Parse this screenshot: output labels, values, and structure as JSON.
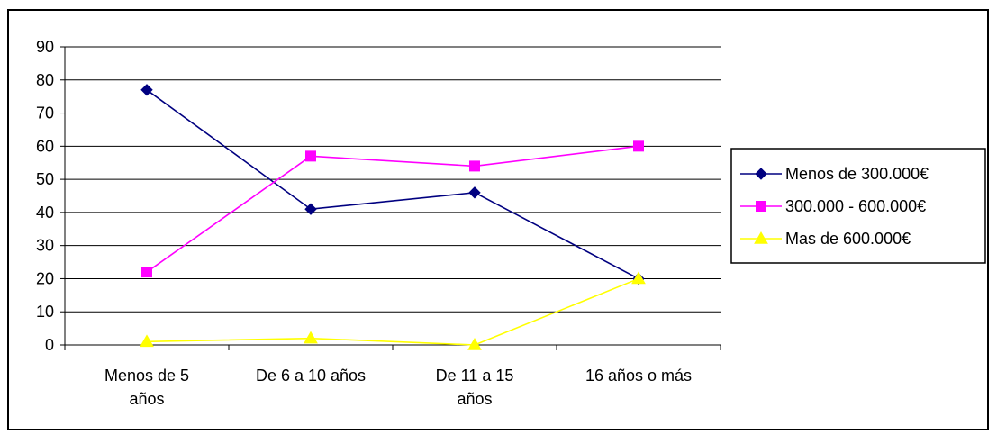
{
  "chart_data": {
    "type": "line",
    "title": "",
    "xlabel": "",
    "ylabel": "",
    "categories": [
      [
        "Menos de 5",
        "años"
      ],
      [
        "De 6 a 10 años"
      ],
      [
        "De 11 a 15",
        "años"
      ],
      [
        "16 años o más"
      ]
    ],
    "ylim": [
      0,
      90
    ],
    "yticks": [
      0,
      10,
      20,
      30,
      40,
      50,
      60,
      70,
      80,
      90
    ],
    "grid": true,
    "legend_position": "right",
    "series": [
      {
        "name": "Menos de 300.000€",
        "values": [
          77,
          41,
          46,
          20
        ],
        "color": "#000080",
        "marker": "diamond"
      },
      {
        "name": "300.000 - 600.000€",
        "values": [
          22,
          57,
          54,
          60
        ],
        "color": "#FF00FF",
        "marker": "square"
      },
      {
        "name": "Mas de 600.000€",
        "values": [
          1,
          2,
          0,
          20
        ],
        "color": "#FFFF00",
        "marker": "triangle"
      }
    ]
  }
}
